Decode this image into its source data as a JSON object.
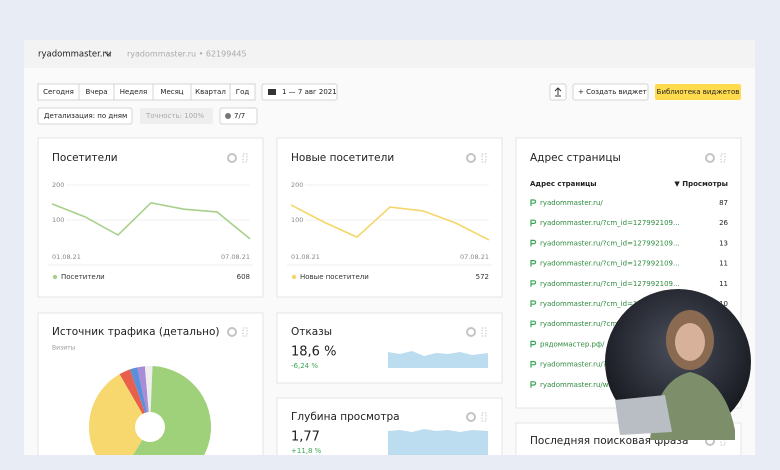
{
  "header": {
    "site": "ryadommaster.ru",
    "counter": "ryadommaster.ru • 62199445"
  },
  "toolbar": {
    "periods": [
      "Сегодня",
      "Вчера",
      "Неделя",
      "Месяц",
      "Квартал",
      "Год"
    ],
    "date_range": "1 — 7 авг 2021",
    "create_widget": "+ Создать виджет",
    "library": "Библиотека виджетов",
    "detail": "Детализация: по дням",
    "accuracy": "Точность: 100%",
    "filters": "7/7"
  },
  "visitors": {
    "title": "Посетители",
    "yticks": [
      200,
      100
    ],
    "x_labels": [
      "01.08.21",
      "07.08.21"
    ],
    "series_name": "Посетители",
    "total": 608,
    "color": "#a8d08d",
    "values": [
      146,
      109,
      57,
      149,
      131,
      123,
      46
    ]
  },
  "new_visitors": {
    "title": "Новые посетители",
    "yticks": [
      200,
      100
    ],
    "x_labels": [
      "01.08.21",
      "07.08.21"
    ],
    "series_name": "Новые посетители",
    "total": 572,
    "color": "#f5d66b",
    "values": [
      143,
      94,
      51,
      137,
      126,
      91,
      43
    ]
  },
  "pages": {
    "title": "Адрес страницы",
    "col_url": "Адрес страницы",
    "col_views": "▼ Просмотры",
    "rows": [
      {
        "url": "ryadommaster.ru/",
        "views": 87
      },
      {
        "url": "ryadommaster.ru/?cm_id=127992109...",
        "views": 26
      },
      {
        "url": "ryadommaster.ru/?cm_id=127992109...",
        "views": 13
      },
      {
        "url": "ryadommaster.ru/?cm_id=127992109...",
        "views": 11
      },
      {
        "url": "ryadommaster.ru/?cm_id=127992109...",
        "views": 11
      },
      {
        "url": "ryadommaster.ru/?cm_id=127992109...",
        "views": 10
      },
      {
        "url": "ryadommaster.ru/?cm"
      },
      {
        "url": "рядоммастер.рф/"
      },
      {
        "url": "ryadommaster.ru/?"
      },
      {
        "url": "ryadommaster.ru/w"
      }
    ]
  },
  "traffic": {
    "title": "Источник трафика (детально)",
    "metric": "Визиты",
    "values": [
      3,
      2,
      2,
      2,
      58,
      33
    ],
    "colors": [
      "#e8604c",
      "#5b8fd9",
      "#a98bd6",
      "#eeeeee",
      "#9fd07a",
      "#f6d86f"
    ]
  },
  "bounce": {
    "title": "Отказы",
    "value": "18,6 %",
    "change": "-6,24 %"
  },
  "depth": {
    "title": "Глубина просмотра",
    "value": "1,77",
    "change": "+11,8 %"
  },
  "last_search": {
    "title": "Последняя поисковая фраза"
  }
}
